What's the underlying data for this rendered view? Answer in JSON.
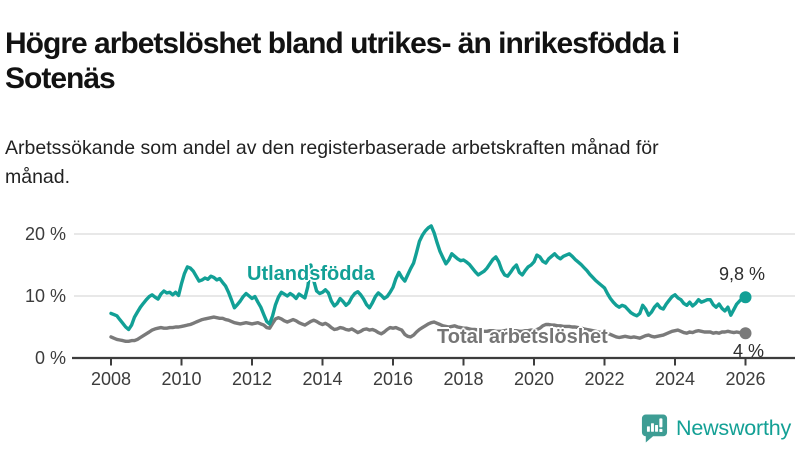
{
  "header": {
    "title": "Högre arbetslöshet bland utrikes- än inrikesfödda i Sotenäs",
    "subtitle": "Arbetssökande som andel av den registerbaserade arbetskraften månad för månad."
  },
  "footer": {
    "brand": "Newsworthy",
    "brand_color": "#13A095",
    "logo_icon": "bar-chart-speech-bubble-icon"
  },
  "chart_data": {
    "type": "line",
    "unit": "%",
    "interval": "monthly",
    "x_start_year": 2008,
    "x_end_year": 2026,
    "x_tick_labels": [
      "2008",
      "2010",
      "2012",
      "2014",
      "2016",
      "2018",
      "2020",
      "2022",
      "2024",
      "2026"
    ],
    "y_ticks": [
      {
        "label": "0 %",
        "value": 0
      },
      {
        "label": "10 %",
        "value": 10
      },
      {
        "label": "20 %",
        "value": 20
      }
    ],
    "ylim": [
      0,
      22.5
    ],
    "grid": "horizontal",
    "axis_color": "#3d3d3d",
    "grid_color": "#e4e4e4",
    "series": [
      {
        "name": "Total arbetslöshet",
        "color": "#7a7a7a",
        "end_label": "4 %",
        "end_value": 4.0,
        "values": [
          3.4,
          3.2,
          3.0,
          2.9,
          2.8,
          2.7,
          2.7,
          2.8,
          2.8,
          3.0,
          3.3,
          3.6,
          3.9,
          4.2,
          4.5,
          4.7,
          4.8,
          4.9,
          4.8,
          4.8,
          4.9,
          4.9,
          5.0,
          5.0,
          5.1,
          5.2,
          5.3,
          5.4,
          5.6,
          5.8,
          6.0,
          6.2,
          6.3,
          6.4,
          6.5,
          6.6,
          6.5,
          6.4,
          6.4,
          6.2,
          6.1,
          5.9,
          5.7,
          5.6,
          5.5,
          5.6,
          5.7,
          5.6,
          5.5,
          5.6,
          5.7,
          5.5,
          5.3,
          4.9,
          4.8,
          5.6,
          6.3,
          6.5,
          6.3,
          6.0,
          5.8,
          6.0,
          6.2,
          6.0,
          5.7,
          5.5,
          5.3,
          5.6,
          5.9,
          6.1,
          5.9,
          5.6,
          5.4,
          5.6,
          5.3,
          4.9,
          4.6,
          4.7,
          4.9,
          4.8,
          4.6,
          4.5,
          4.7,
          4.4,
          4.1,
          4.3,
          4.6,
          4.7,
          4.5,
          4.6,
          4.4,
          4.1,
          3.9,
          4.2,
          4.6,
          4.9,
          4.8,
          4.9,
          4.7,
          4.5,
          3.8,
          3.5,
          3.4,
          3.7,
          4.2,
          4.6,
          4.9,
          5.2,
          5.5,
          5.7,
          5.8,
          5.6,
          5.4,
          5.2,
          5.1,
          5.0,
          5.1,
          5.2,
          5.0,
          4.9,
          4.8,
          4.8,
          4.7,
          4.6,
          4.6,
          4.5,
          4.4,
          4.3,
          4.3,
          4.4,
          4.4,
          4.3,
          4.3,
          4.3,
          4.4,
          4.5,
          4.5,
          4.4,
          4.4,
          4.3,
          4.3,
          4.4,
          4.4,
          4.5,
          4.5,
          4.6,
          4.8,
          5.2,
          5.4,
          5.4,
          5.3,
          5.3,
          5.2,
          5.2,
          5.1,
          5.1,
          5.1,
          5.0,
          5.0,
          4.9,
          4.8,
          4.7,
          4.6,
          4.5,
          4.4,
          4.3,
          4.2,
          4.1,
          4.1,
          4.0,
          3.8,
          3.6,
          3.4,
          3.3,
          3.4,
          3.5,
          3.4,
          3.3,
          3.4,
          3.3,
          3.2,
          3.4,
          3.6,
          3.7,
          3.5,
          3.4,
          3.5,
          3.6,
          3.7,
          3.9,
          4.1,
          4.3,
          4.4,
          4.5,
          4.3,
          4.1,
          4.0,
          4.2,
          4.1,
          4.3,
          4.4,
          4.3,
          4.2,
          4.2,
          4.2,
          4.0,
          4.1,
          4.0,
          4.2,
          4.2,
          4.3,
          4.2,
          4.1,
          4.2,
          4.1,
          4.0,
          4.0
        ]
      },
      {
        "name": "Utlandsfödda",
        "color": "#12A096",
        "end_label": "9,8 %",
        "end_value": 9.8,
        "values": [
          7.2,
          7.0,
          6.8,
          6.2,
          5.6,
          5.0,
          4.6,
          5.3,
          6.6,
          7.4,
          8.2,
          8.8,
          9.4,
          9.9,
          10.2,
          9.8,
          9.5,
          10.3,
          10.8,
          10.5,
          10.6,
          10.2,
          10.6,
          10.1,
          12.0,
          13.6,
          14.7,
          14.5,
          14.0,
          13.2,
          12.4,
          12.6,
          12.9,
          12.7,
          13.2,
          13.0,
          12.6,
          12.8,
          12.2,
          11.6,
          10.6,
          9.4,
          8.1,
          8.6,
          9.2,
          9.9,
          10.4,
          10.0,
          9.6,
          9.9,
          9.0,
          8.2,
          7.0,
          5.9,
          5.5,
          6.8,
          8.6,
          9.8,
          10.6,
          10.3,
          10.0,
          10.4,
          10.1,
          9.6,
          10.3,
          10.0,
          9.7,
          11.5,
          15.0,
          12.5,
          10.8,
          10.4,
          10.6,
          11.0,
          10.5,
          9.2,
          8.4,
          8.8,
          9.6,
          9.1,
          8.5,
          8.9,
          9.8,
          10.4,
          10.7,
          10.2,
          9.5,
          8.6,
          8.1,
          8.9,
          9.9,
          10.5,
          10.1,
          9.6,
          9.9,
          10.6,
          11.4,
          12.8,
          13.8,
          13.0,
          12.4,
          13.4,
          14.4,
          15.3,
          17.0,
          18.8,
          19.8,
          20.5,
          21.0,
          21.3,
          20.2,
          18.6,
          17.2,
          16.2,
          15.2,
          15.8,
          16.8,
          16.4,
          16.0,
          15.7,
          15.8,
          15.5,
          15.1,
          14.5,
          13.9,
          13.4,
          13.7,
          14.0,
          14.5,
          15.2,
          15.9,
          16.3,
          15.5,
          14.2,
          13.4,
          13.2,
          13.8,
          14.5,
          15.0,
          13.8,
          13.4,
          14.1,
          14.7,
          15.0,
          15.5,
          16.6,
          16.3,
          15.6,
          15.3,
          16.0,
          16.4,
          16.8,
          16.3,
          16.0,
          16.4,
          16.6,
          16.8,
          16.4,
          15.9,
          15.5,
          15.1,
          14.6,
          14.1,
          13.5,
          13.0,
          12.5,
          12.1,
          11.7,
          11.3,
          10.4,
          9.6,
          9.0,
          8.5,
          8.2,
          8.5,
          8.3,
          7.8,
          7.3,
          7.0,
          6.8,
          7.2,
          8.5,
          7.9,
          6.9,
          7.4,
          8.2,
          8.7,
          8.1,
          7.9,
          8.7,
          9.3,
          9.9,
          10.2,
          9.7,
          9.4,
          8.8,
          8.5,
          9.0,
          8.4,
          8.8,
          9.4,
          9.0,
          9.2,
          9.4,
          9.4,
          8.6,
          8.2,
          8.7,
          8.0,
          7.6,
          8.2,
          6.9,
          7.8,
          8.7,
          9.2,
          9.7,
          9.8
        ]
      }
    ]
  }
}
